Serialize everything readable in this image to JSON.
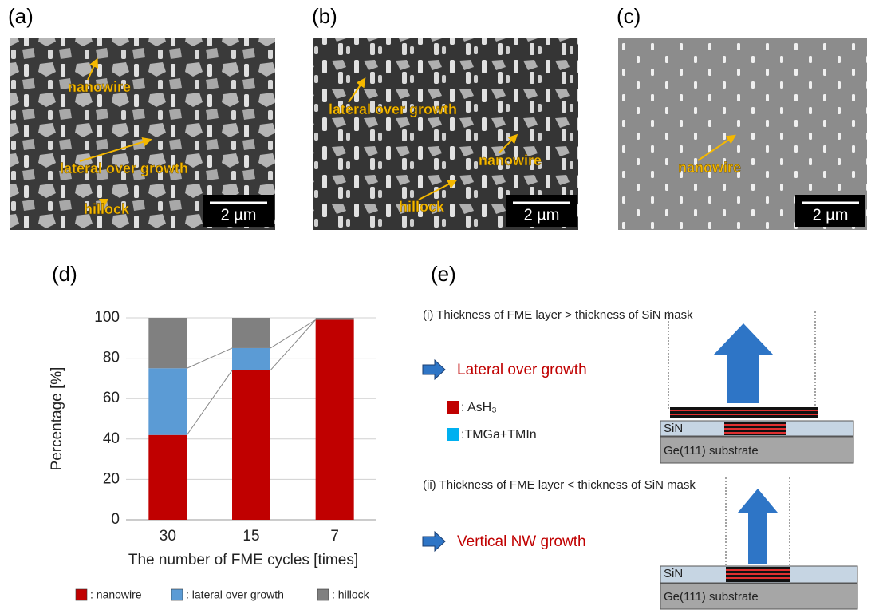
{
  "panels": [
    {
      "label": "(a)",
      "annotations": [
        "nanowire",
        "lateral over growth",
        "hillock"
      ],
      "scale_bar": "2 µm"
    },
    {
      "label": "(b)",
      "annotations": [
        "lateral over growth",
        "nanowire",
        "hillock"
      ],
      "scale_bar": "2 µm"
    },
    {
      "label": "(c)",
      "annotations": [
        "nanowire"
      ],
      "scale_bar": "2 µm"
    }
  ],
  "chart_data": {
    "type": "bar",
    "stacked": true,
    "panel_label": "(d)",
    "y_label": "Percentage [%]",
    "x_label": "The number of FME cycles [times]",
    "categories": [
      "30",
      "15",
      "7"
    ],
    "series": [
      {
        "name": ": nanowire",
        "color": "#c00000",
        "values": [
          42,
          74,
          99
        ]
      },
      {
        "name": ": lateral over growth",
        "color": "#5b9bd5",
        "values": [
          33,
          11,
          0
        ]
      },
      {
        "name": ": hillock",
        "color": "#808080",
        "values": [
          25,
          15,
          1
        ]
      }
    ],
    "ylim": [
      0,
      100
    ],
    "yticks": [
      0,
      20,
      40,
      60,
      80,
      100
    ],
    "grid": true
  },
  "diagram": {
    "panel_label": "(e)",
    "case_i": {
      "condition": "(i)  Thickness of FME layer > thickness of SiN mask",
      "result": "Lateral over growth"
    },
    "case_ii": {
      "condition": "(ii)  Thickness of FME layer < thickness of SiN mask",
      "result": "Vertical NW growth"
    },
    "legend": [
      ": AsH₃",
      ":TMGa+TMIn"
    ],
    "mask_label": "SiN",
    "substrate_label": "Ge(111) substrate"
  }
}
